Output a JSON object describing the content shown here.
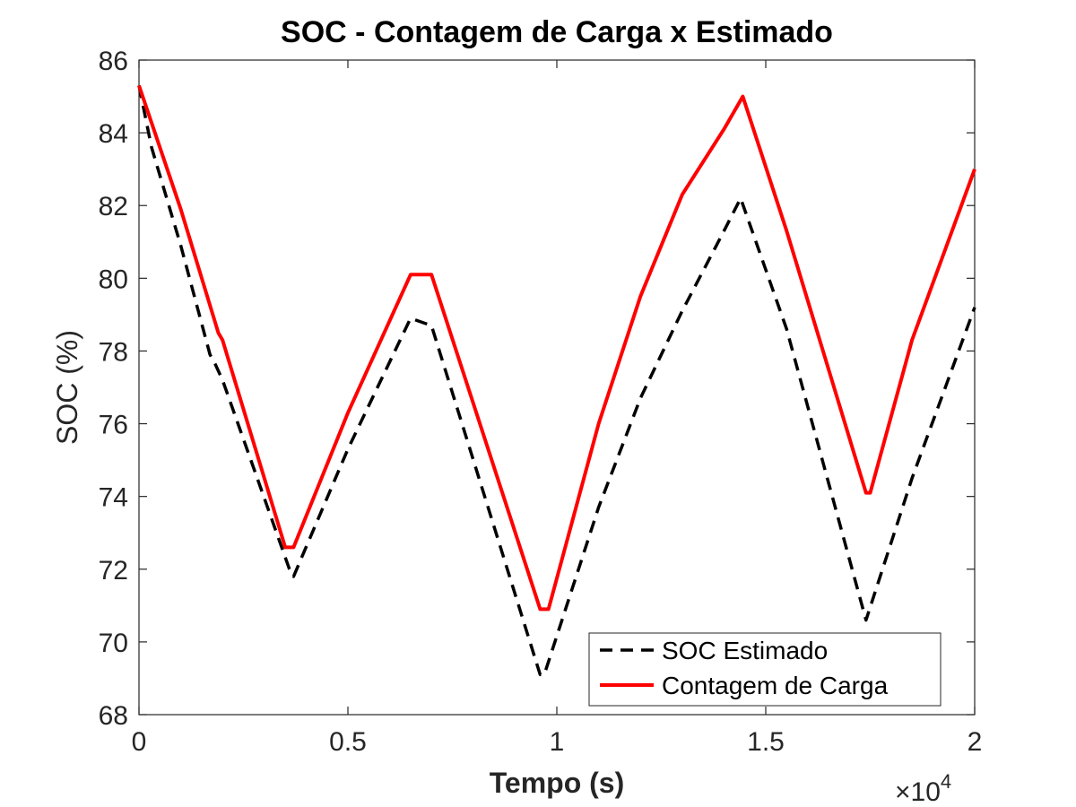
{
  "chart_data": {
    "type": "line",
    "title": "SOC - Contagem de Carga x Estimado",
    "xlabel": "Tempo (s)",
    "ylabel": "SOC (%)",
    "x_multiplier": {
      "base": "10",
      "exponent": "4"
    },
    "xlim": [
      0,
      20000
    ],
    "ylim": [
      68,
      86
    ],
    "xticks": [
      0,
      5000,
      10000,
      15000,
      20000
    ],
    "xtick_labels": [
      "0",
      "0.5",
      "1",
      "1.5",
      "2"
    ],
    "yticks": [
      68,
      70,
      72,
      74,
      76,
      78,
      80,
      82,
      84,
      86
    ],
    "ytick_labels": [
      "68",
      "70",
      "72",
      "74",
      "76",
      "78",
      "80",
      "82",
      "84",
      "86"
    ],
    "grid": false,
    "legend_position": "bottom-right",
    "series": [
      {
        "name": "SOC Estimado",
        "color": "#000000",
        "style": "dashed",
        "x": [
          0,
          300,
          1000,
          1700,
          1800,
          2000,
          3600,
          3700,
          5000,
          6500,
          7000,
          9600,
          9700,
          11000,
          12000,
          13000,
          14000,
          14400,
          15500,
          17400,
          18500,
          20000
        ],
        "y": [
          85.3,
          83.6,
          80.9,
          77.9,
          77.7,
          77.2,
          72.0,
          71.8,
          75.3,
          78.9,
          78.7,
          69.1,
          69.1,
          73.7,
          76.7,
          79.1,
          81.3,
          82.2,
          78.6,
          70.6,
          74.5,
          79.2
        ]
      },
      {
        "name": "Contagem de Carga",
        "color": "#ff0000",
        "style": "solid",
        "x": [
          0,
          1000,
          1900,
          2000,
          3500,
          3700,
          5000,
          6500,
          7000,
          9600,
          9800,
          11000,
          12000,
          13000,
          14000,
          14450,
          15500,
          17400,
          17500,
          18500,
          20000
        ],
        "y": [
          85.3,
          81.9,
          78.5,
          78.3,
          72.6,
          72.6,
          76.3,
          80.1,
          80.1,
          70.9,
          70.9,
          76.0,
          79.5,
          82.3,
          84.1,
          85.0,
          81.3,
          74.1,
          74.1,
          78.3,
          83.0
        ]
      }
    ]
  }
}
